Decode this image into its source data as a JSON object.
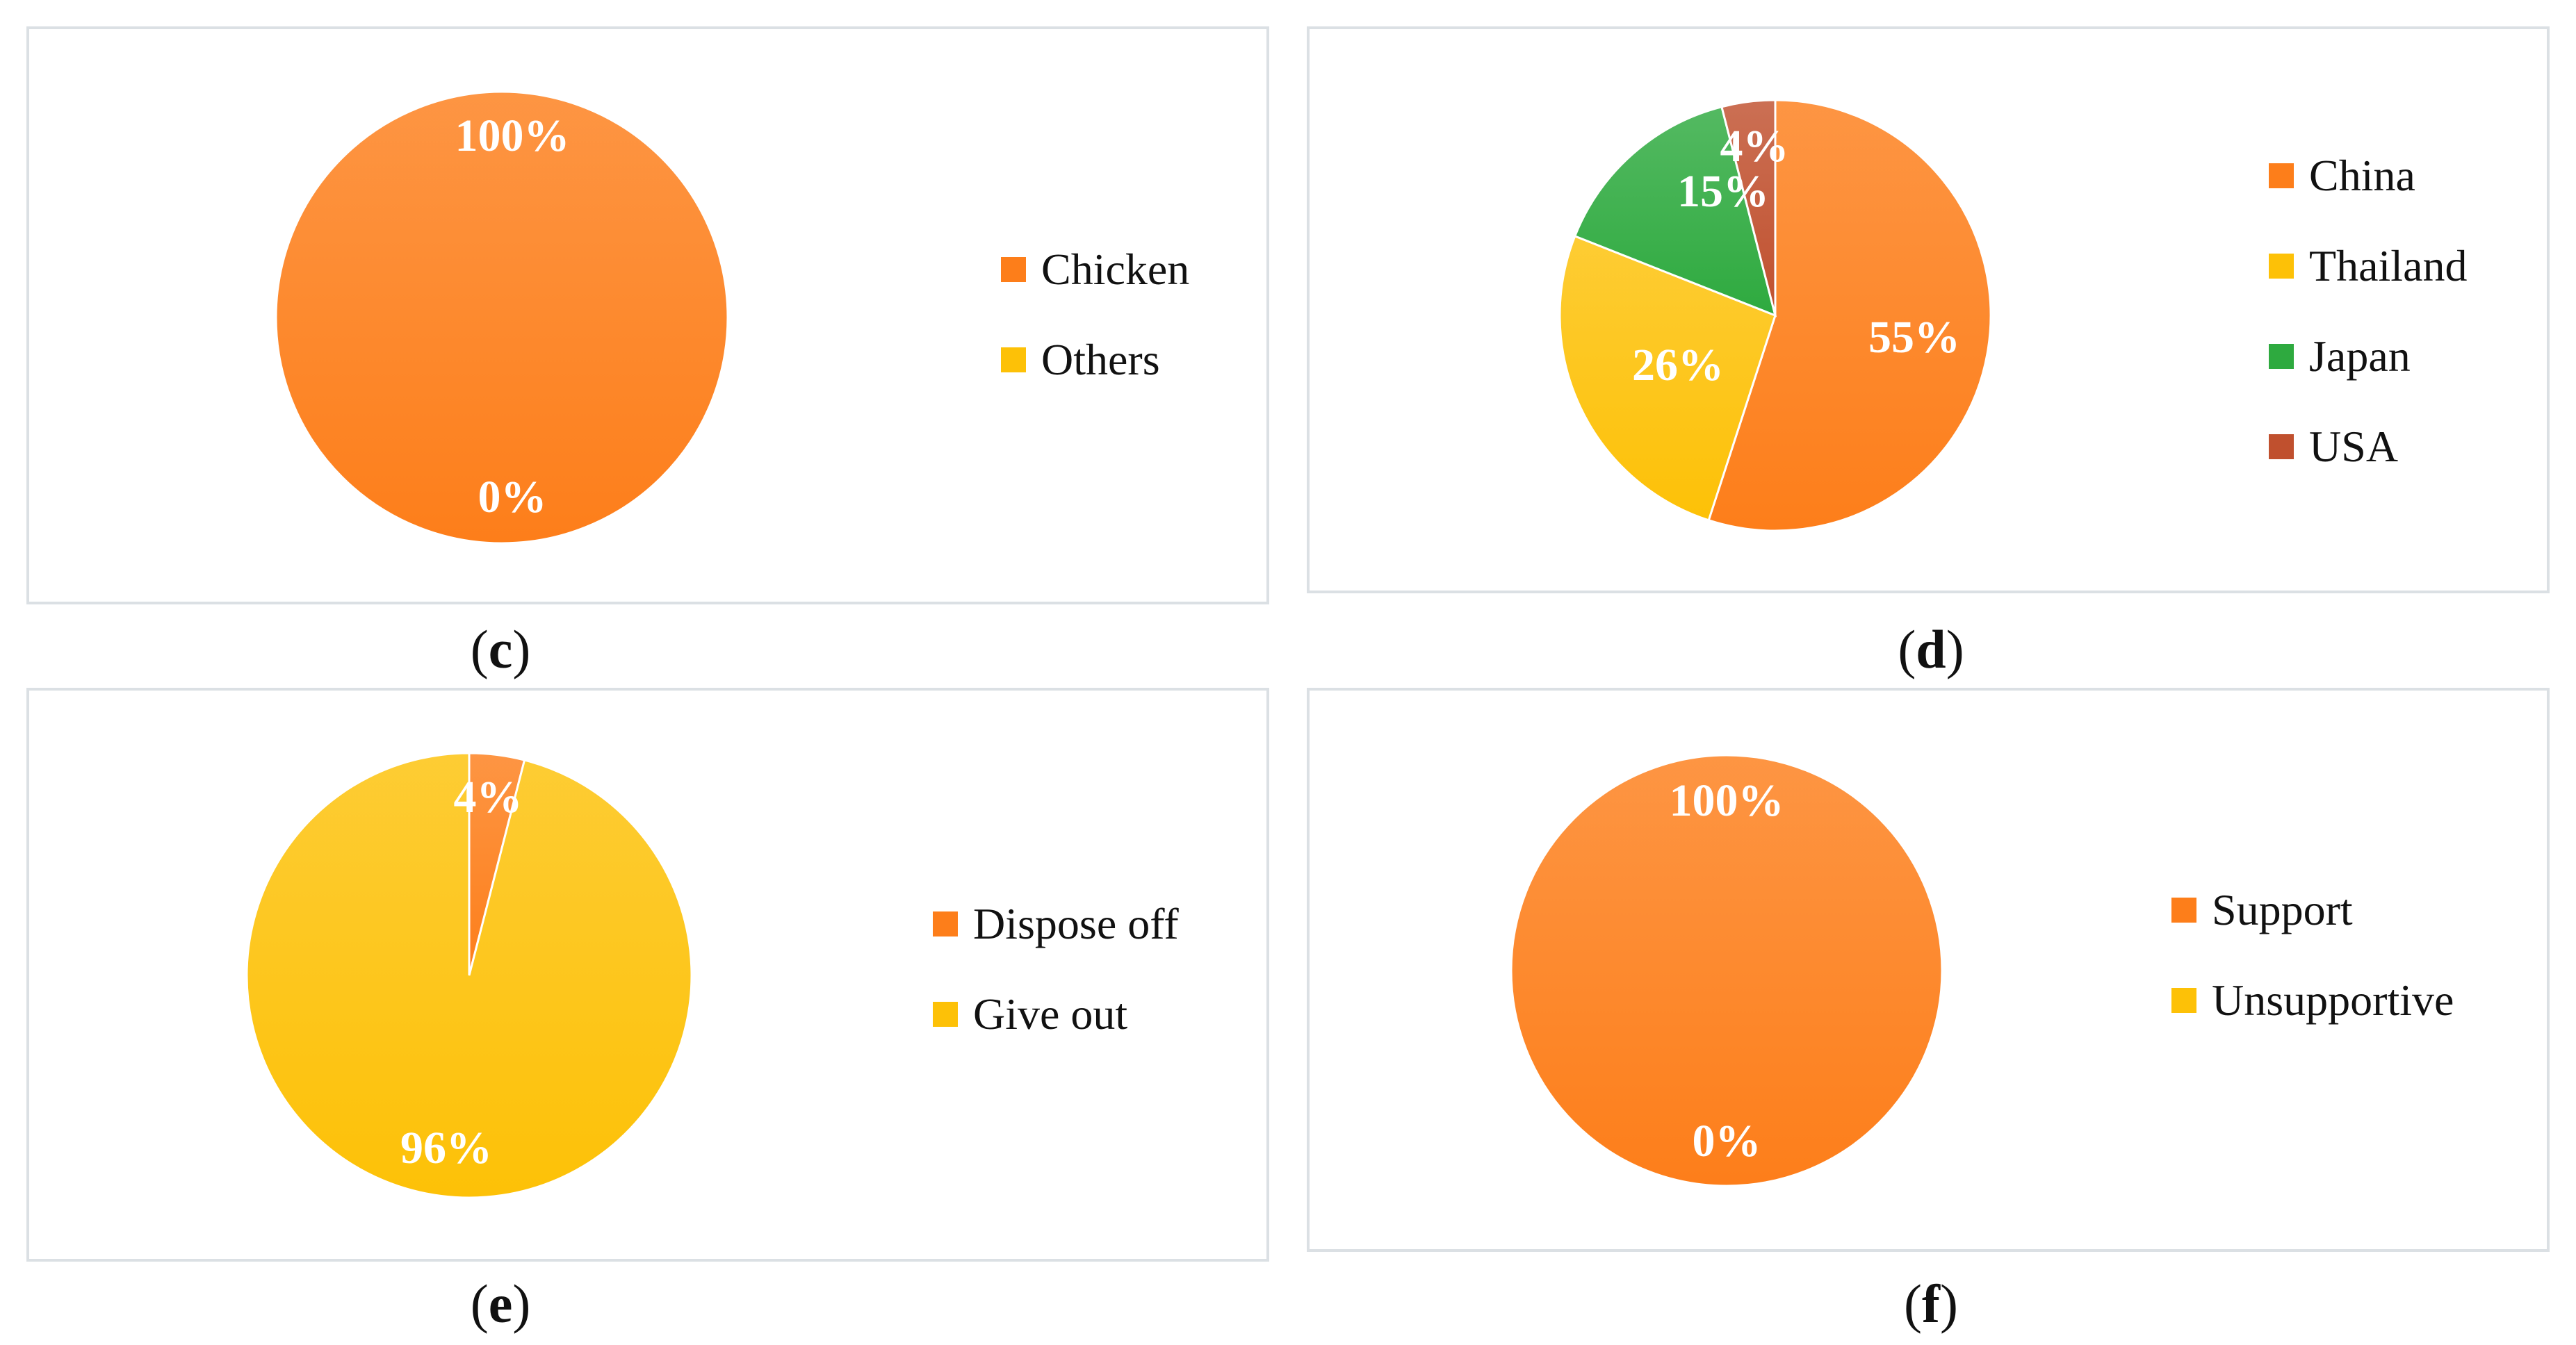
{
  "colors": {
    "orange": "#fd7e1a",
    "yellow": "#fdc107",
    "green": "#2eaa3f",
    "brown": "#c0502e",
    "white": "#ffffff"
  },
  "chart_data": [
    {
      "type": "pie",
      "panel_label": "c",
      "labels": [
        "Chicken",
        "Others"
      ],
      "values": [
        100,
        0
      ],
      "data_labels": [
        "100%",
        "0%"
      ],
      "colors": [
        "#fd7e1a",
        "#fdc107"
      ],
      "legend_position": "right"
    },
    {
      "type": "pie",
      "panel_label": "d",
      "labels": [
        "China",
        "Thailand",
        "Japan",
        "USA"
      ],
      "values": [
        55,
        26,
        15,
        4
      ],
      "data_labels": [
        "55%",
        "26%",
        "15%",
        "4%"
      ],
      "colors": [
        "#fd7e1a",
        "#fdc107",
        "#2eaa3f",
        "#c0502e"
      ],
      "legend_position": "right"
    },
    {
      "type": "pie",
      "panel_label": "e",
      "labels": [
        "Dispose off",
        "Give out"
      ],
      "values": [
        4,
        96
      ],
      "data_labels": [
        "4%",
        "96%"
      ],
      "colors": [
        "#fd7e1a",
        "#fdc107"
      ],
      "legend_position": "right"
    },
    {
      "type": "pie",
      "panel_label": "f",
      "labels": [
        "Support",
        "Unsupportive"
      ],
      "values": [
        100,
        0
      ],
      "data_labels": [
        "100%",
        "0%"
      ],
      "colors": [
        "#fd7e1a",
        "#fdc107"
      ],
      "legend_position": "right"
    }
  ]
}
